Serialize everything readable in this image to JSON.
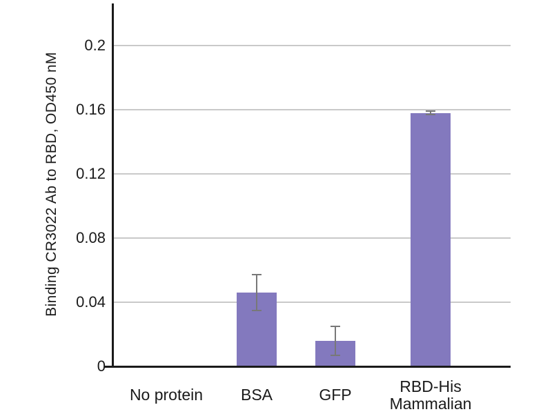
{
  "chart_data": {
    "type": "bar",
    "title": "",
    "xlabel": "",
    "ylabel": "Binding CR3022 Ab to RBD, OD450 nM",
    "categories": [
      "No protein",
      "BSA",
      "GFP",
      "RBD-His Mammalian"
    ],
    "category_lines": [
      [
        "No protein"
      ],
      [
        "BSA"
      ],
      [
        "GFP"
      ],
      [
        "RBD-His",
        "Mammalian"
      ]
    ],
    "values": [
      0,
      0.046,
      0.016,
      0.158
    ],
    "errors": [
      0,
      0.011,
      0.009,
      0.001
    ],
    "ylim": [
      0,
      0.225
    ],
    "yticks": [
      0,
      0.04,
      0.08,
      0.12,
      0.16,
      0.2
    ],
    "ytick_labels": [
      "0",
      "0.04",
      "0.08",
      "0.12",
      "0.16",
      "0.2"
    ],
    "grid": true,
    "legend": false,
    "colors": {
      "bar": "#8379BE",
      "error_bar": "#787878",
      "gridline": "#C9C9C9",
      "axis": "#1A1A1A",
      "text": "#1A1A1A",
      "background": "#FFFFFF"
    }
  }
}
